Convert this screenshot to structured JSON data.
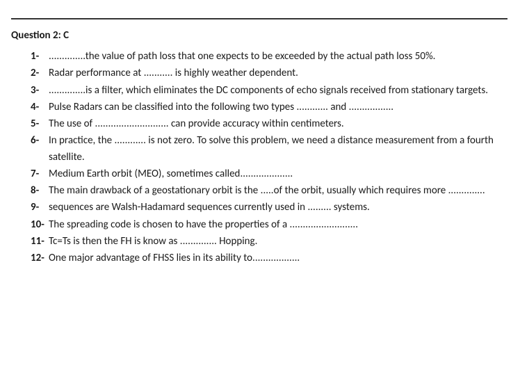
{
  "title": "Question 2: C",
  "items": [
    {
      "num": "1-",
      "text": "..............the value of path loss that one expects to be exceeded by the actual path loss 50%."
    },
    {
      "num": "2-",
      "text": "Radar performance at ........... is highly weather dependent."
    },
    {
      "num": "3-",
      "text": "..............is a filter, which eliminates the DC components of echo signals received from stationary targets."
    },
    {
      "num": "4-",
      "text": "Pulse Radars can be classified into the following two types ............ and ................."
    },
    {
      "num": "5-",
      "text": "The use of ............................ can provide accuracy within centimeters."
    },
    {
      "num": "6-",
      "text": "In practice, the ............ is not zero. To solve this problem, we need a distance measurement from a fourth satellite."
    },
    {
      "num": "7-",
      "text": "Medium Earth orbit (MEO), sometimes called...................."
    },
    {
      "num": "8-",
      "text": "The main drawback of a geostationary orbit is the .....of the orbit, usually which requires more .............."
    },
    {
      "num": "9-",
      "text": "sequences are Walsh-Hadamard sequences currently used in ......... systems."
    },
    {
      "num": "10-",
      "text": "The spreading code is chosen to have the properties of a .........................."
    },
    {
      "num": "11-",
      "text": "Tc=Ts is then the FH is know as .............. Hopping."
    },
    {
      "num": "12-",
      "text": "One major advantage of FHSS lies in its ability to.................."
    }
  ],
  "style": {
    "background_color": "#ffffff",
    "text_color": "#1a1a1a",
    "rule_color": "#333333",
    "font_family": "Calibri",
    "title_fontsize": 15,
    "body_fontsize": 15,
    "line_height": 1.55
  }
}
